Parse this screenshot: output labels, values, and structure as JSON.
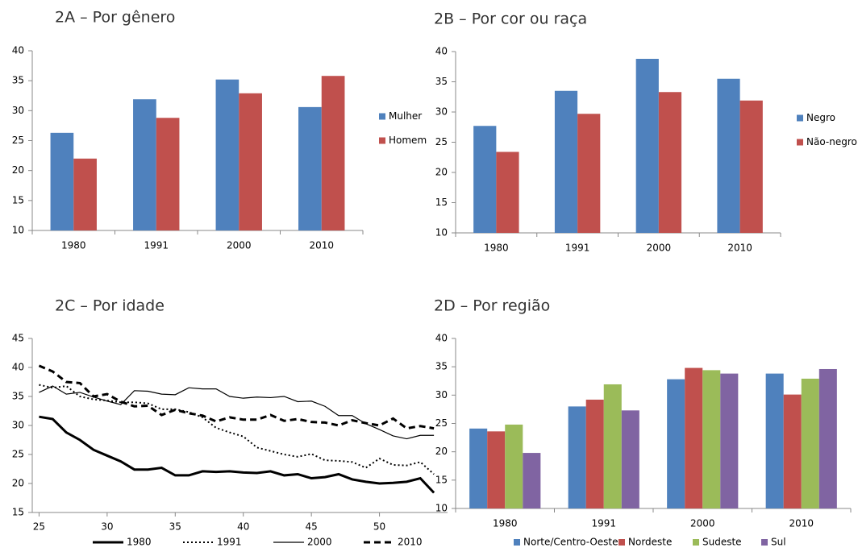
{
  "chart_data": [
    {
      "type": "bar",
      "title": "2A – Por gênero",
      "categories": [
        "1980",
        "1991",
        "2000",
        "2010"
      ],
      "series": [
        {
          "name": "Mulher",
          "color": "#4f81bd",
          "values": [
            26.3,
            31.9,
            35.2,
            30.6
          ]
        },
        {
          "name": "Homem",
          "color": "#c0504d",
          "values": [
            22,
            28.8,
            32.9,
            35.8
          ]
        }
      ],
      "ylim": [
        10,
        40
      ],
      "yticks": [
        10,
        15,
        20,
        25,
        30,
        35,
        40
      ],
      "grid": false,
      "legend": "right"
    },
    {
      "type": "bar",
      "title": "2B – Por cor ou raça",
      "categories": [
        "1980",
        "1991",
        "2000",
        "2010"
      ],
      "series": [
        {
          "name": "Negro",
          "color": "#4f81bd",
          "values": [
            27.7,
            33.5,
            38.8,
            35.5
          ]
        },
        {
          "name": "Não-negro",
          "color": "#c0504d",
          "values": [
            23.4,
            29.7,
            33.3,
            31.9
          ]
        }
      ],
      "ylim": [
        10,
        40
      ],
      "yticks": [
        10,
        15,
        20,
        25,
        30,
        35,
        40
      ],
      "grid": false,
      "legend": "right"
    },
    {
      "type": "line",
      "title": "2C – Por idade",
      "x": [
        25,
        26,
        27,
        28,
        29,
        30,
        31,
        32,
        33,
        34,
        35,
        36,
        37,
        38,
        39,
        40,
        41,
        42,
        43,
        44,
        45,
        46,
        47,
        48,
        49,
        50,
        51,
        52,
        53,
        54
      ],
      "series": [
        {
          "name": "1980",
          "color": "#000000",
          "line_style": "solid-thick",
          "values": [
            31.5,
            31.1,
            28.8,
            27.5,
            25.8,
            24.8,
            23.8,
            22.4,
            22.4,
            22.7,
            21.4,
            21.4,
            22.1,
            22.0,
            22.1,
            21.9,
            21.8,
            22.1,
            21.4,
            21.6,
            20.9,
            21.1,
            21.6,
            20.7,
            20.3,
            20.0,
            20.1,
            20.3,
            20.9,
            18.4
          ]
        },
        {
          "name": "1991",
          "color": "#000000",
          "line_style": "dotted",
          "values": [
            37.0,
            36.5,
            36.8,
            35.0,
            34.5,
            34.3,
            34.0,
            34.0,
            33.8,
            32.8,
            32.8,
            32.3,
            31.4,
            29.6,
            28.8,
            28.1,
            26.2,
            25.6,
            25.0,
            24.6,
            25.1,
            24.0,
            23.9,
            23.7,
            22.7,
            24.3,
            23.2,
            23.1,
            23.7,
            21.6
          ]
        },
        {
          "name": "2000",
          "color": "#000000",
          "line_style": "solid-thin",
          "values": [
            35.7,
            36.8,
            35.4,
            35.7,
            34.9,
            34.2,
            33.6,
            36.0,
            35.9,
            35.4,
            35.3,
            36.5,
            36.3,
            36.3,
            35.0,
            34.7,
            34.9,
            34.8,
            35.0,
            34.1,
            34.2,
            33.3,
            31.7,
            31.7,
            30.3,
            29.3,
            28.2,
            27.7,
            28.3,
            28.3
          ]
        },
        {
          "name": "2010",
          "color": "#000000",
          "line_style": "dashed-thick",
          "values": [
            40.3,
            39.3,
            37.5,
            37.3,
            35.0,
            35.4,
            34.1,
            33.3,
            33.4,
            31.8,
            32.7,
            32.1,
            31.7,
            30.7,
            31.4,
            31.0,
            31.0,
            31.8,
            30.8,
            31.1,
            30.6,
            30.5,
            30.0,
            30.9,
            30.4,
            30.0,
            31.2,
            29.5,
            29.9,
            29.5
          ]
        }
      ],
      "xlim": [
        24.5,
        55
      ],
      "xticks": [
        25,
        30,
        35,
        40,
        45,
        50
      ],
      "ylim": [
        15,
        45
      ],
      "yticks": [
        15,
        20,
        25,
        30,
        35,
        40,
        45
      ],
      "grid": false,
      "legend": "bottom"
    },
    {
      "type": "bar",
      "title": "2D – Por região",
      "categories": [
        "1980",
        "1991",
        "2000",
        "2010"
      ],
      "series": [
        {
          "name": "Norte/Centro-Oeste",
          "color": "#4f81bd",
          "values": [
            24.1,
            28.0,
            32.8,
            33.8
          ]
        },
        {
          "name": "Nordeste",
          "color": "#c0504d",
          "values": [
            23.6,
            29.2,
            34.8,
            30.1
          ]
        },
        {
          "name": "Sudeste",
          "color": "#9bbb59",
          "values": [
            24.8,
            31.9,
            34.4,
            32.9
          ]
        },
        {
          "name": "Sul",
          "color": "#8064a2",
          "values": [
            19.8,
            27.3,
            33.8,
            34.6
          ]
        }
      ],
      "ylim": [
        10,
        40
      ],
      "yticks": [
        10,
        15,
        20,
        25,
        30,
        35,
        40
      ],
      "grid": false,
      "legend": "bottom"
    }
  ]
}
